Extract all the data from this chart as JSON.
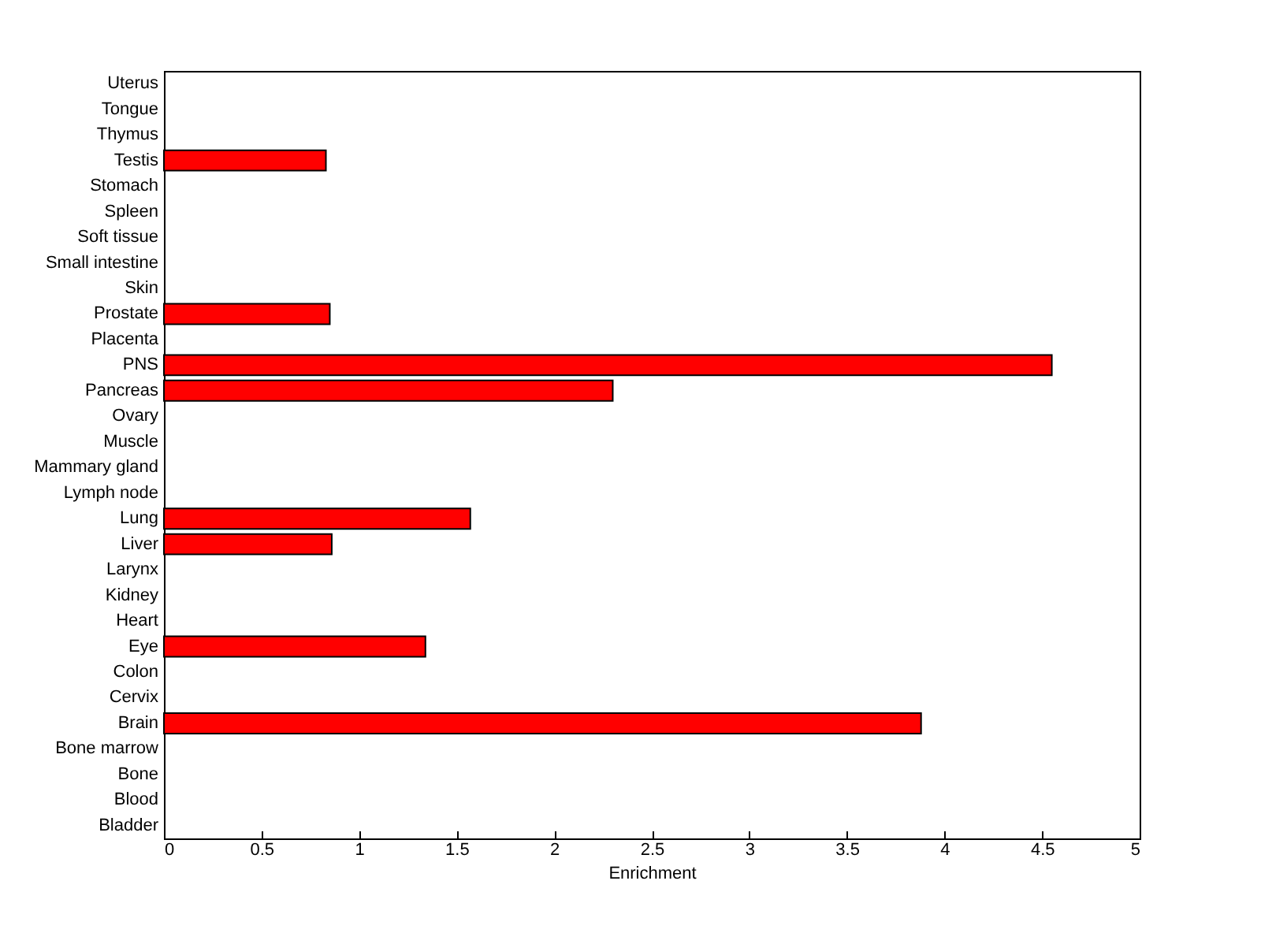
{
  "chart_data": {
    "type": "bar",
    "orientation": "horizontal",
    "xlabel": "Enrichment",
    "categories": [
      "Uterus",
      "Tongue",
      "Thymus",
      "Testis",
      "Stomach",
      "Spleen",
      "Soft tissue",
      "Small intestine",
      "Skin",
      "Prostate",
      "Placenta",
      "PNS",
      "Pancreas",
      "Ovary",
      "Muscle",
      "Mammary gland",
      "Lymph node",
      "Lung",
      "Liver",
      "Larynx",
      "Kidney",
      "Heart",
      "Eye",
      "Colon",
      "Cervix",
      "Brain",
      "Bone marrow",
      "Bone",
      "Blood",
      "Bladder"
    ],
    "values": [
      0,
      0,
      0,
      0.83,
      0,
      0,
      0,
      0,
      0,
      0.85,
      0,
      4.55,
      2.3,
      0,
      0,
      0,
      0,
      1.57,
      0.86,
      0,
      0,
      0,
      1.34,
      0,
      0,
      3.88,
      0,
      0,
      0,
      0
    ],
    "color": "#ff0000",
    "xlim": [
      0,
      5
    ],
    "xticks": [
      0,
      0.5,
      1,
      1.5,
      2,
      2.5,
      3,
      3.5,
      4,
      4.5,
      5
    ],
    "grid": false
  }
}
